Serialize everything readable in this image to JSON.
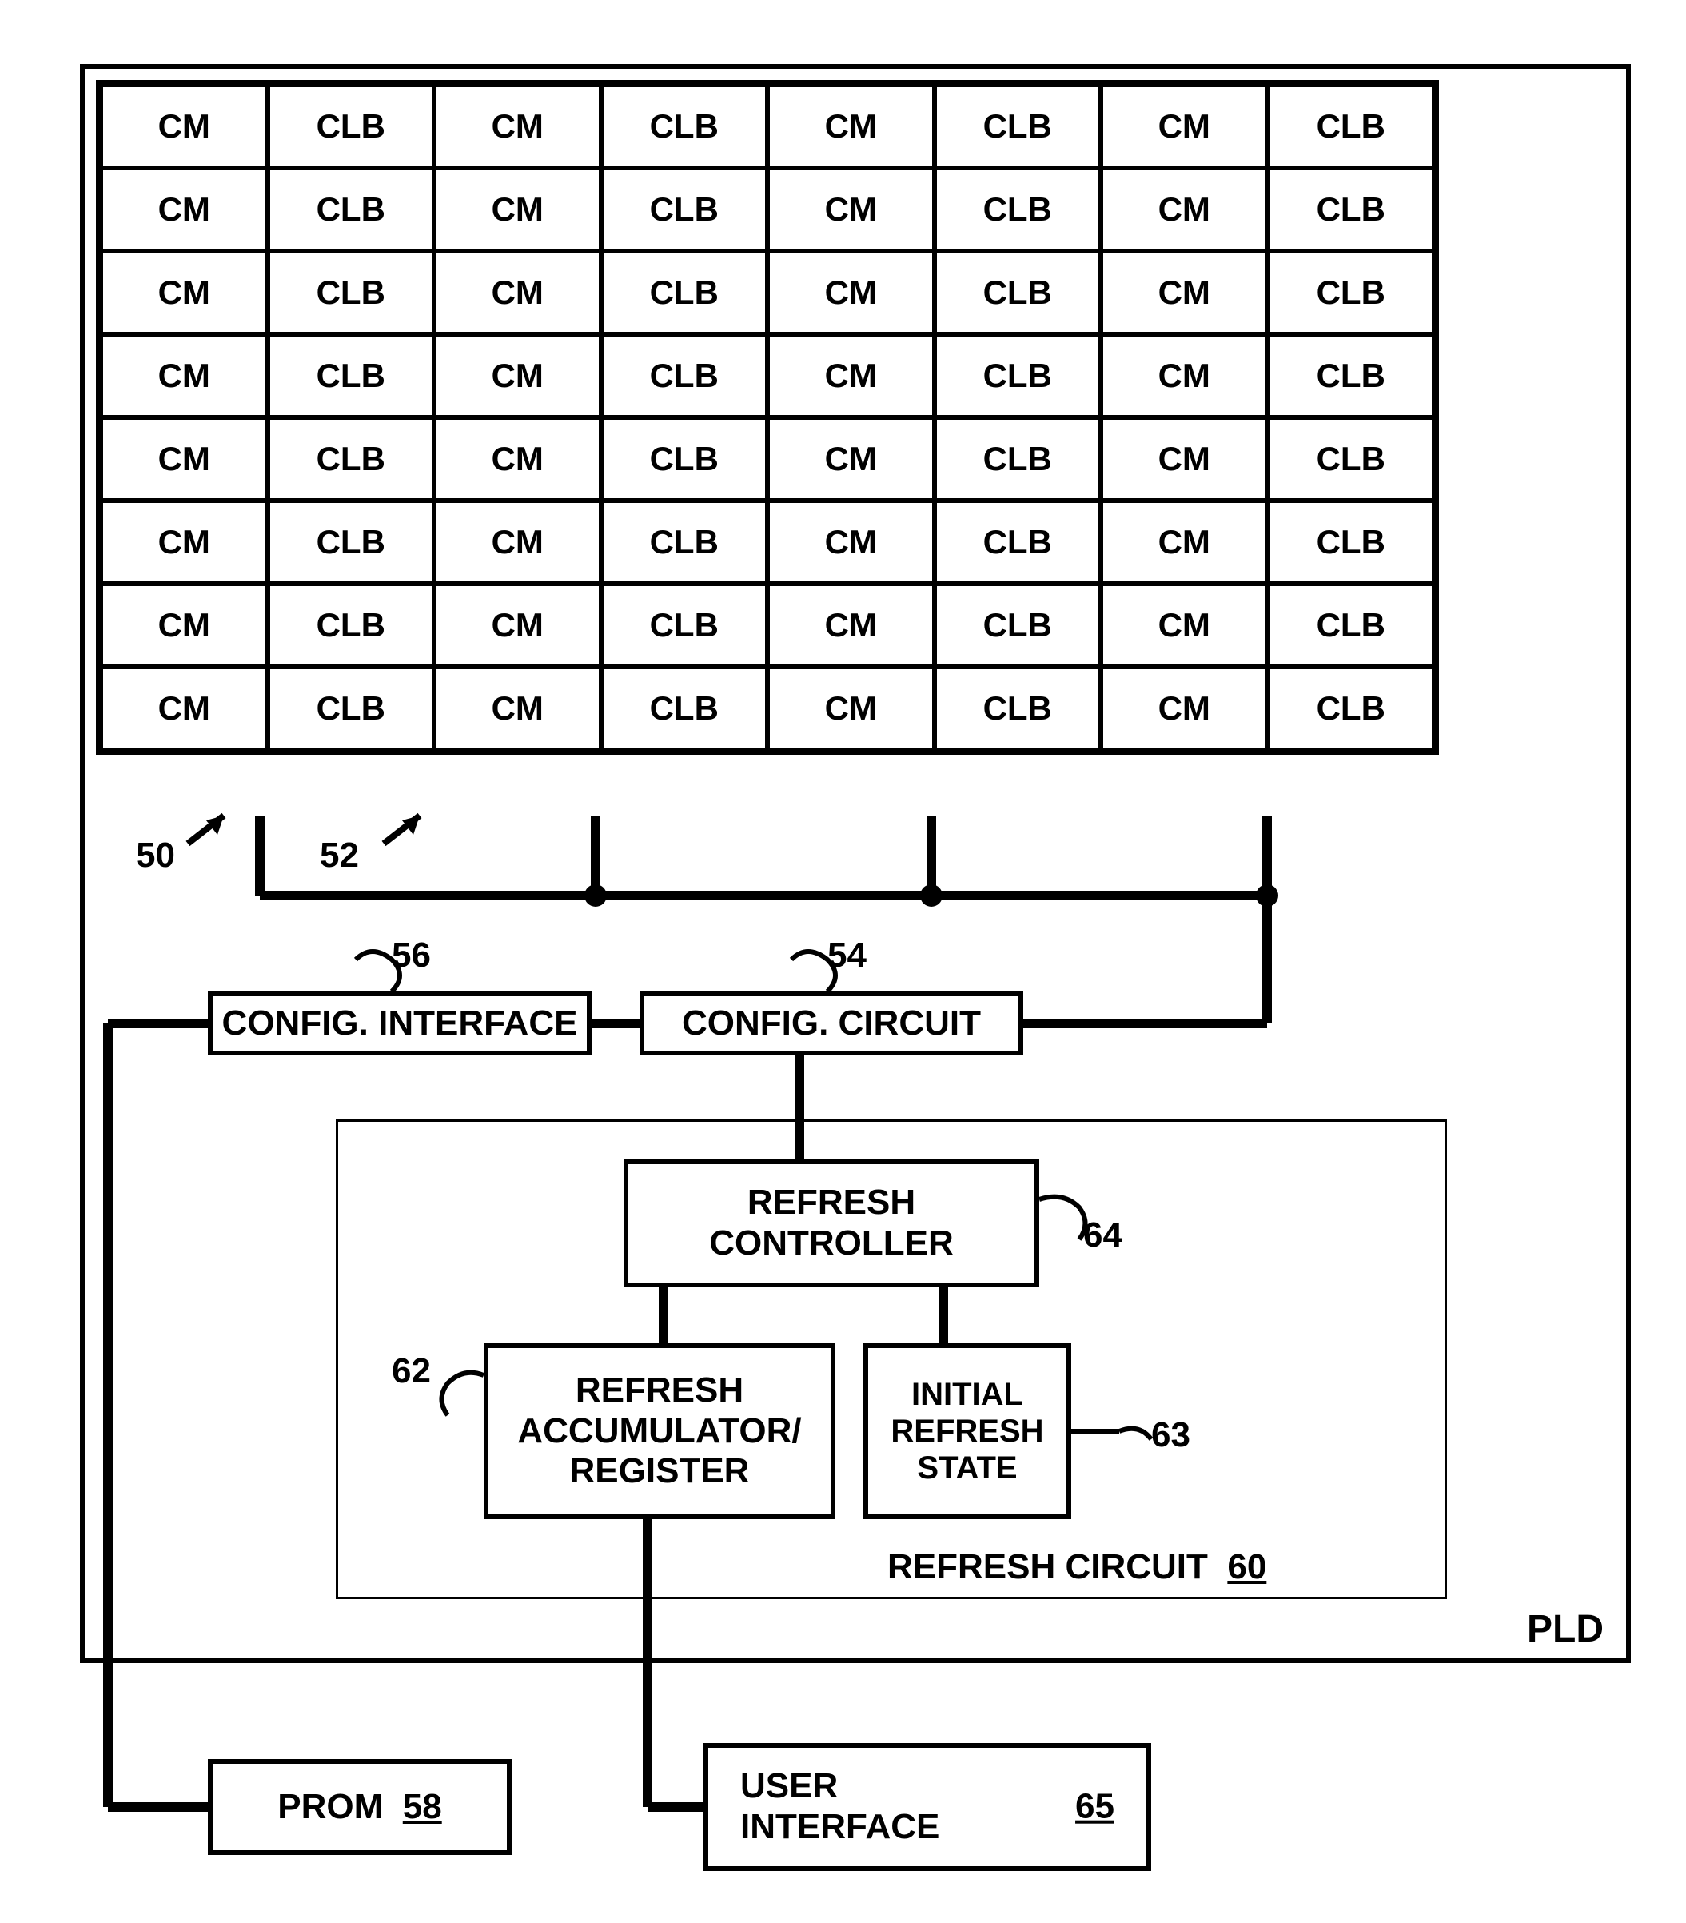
{
  "grid": {
    "rows": 8,
    "cols": 8,
    "pattern": [
      "CM",
      "CLB",
      "CM",
      "CLB",
      "CM",
      "CLB",
      "CM",
      "CLB"
    ]
  },
  "labels": {
    "l50": "50",
    "l52": "52",
    "l56": "56",
    "l54": "54",
    "l64": "64",
    "l62": "62",
    "l63": "63",
    "refresh_circuit": "REFRESH CIRCUIT",
    "refresh_circuit_num": "60",
    "pld": "PLD"
  },
  "blocks": {
    "config_interface": "CONFIG. INTERFACE",
    "config_circuit": "CONFIG. CIRCUIT",
    "refresh_controller": "REFRESH\nCONTROLLER",
    "refresh_accum": "REFRESH\nACCUMULATOR/\nREGISTER",
    "initial_refresh": "INITIAL\nREFRESH\nSTATE",
    "prom": "PROM",
    "prom_num": "58",
    "user_interface": "USER\nINTERFACE",
    "user_interface_num": "65"
  },
  "style": {
    "stroke": "#000000",
    "stroke_thick": 12,
    "stroke_med": 6,
    "font_size_cell": 42,
    "font_size_block": 44,
    "font_size_label": 44,
    "background": "#ffffff"
  }
}
